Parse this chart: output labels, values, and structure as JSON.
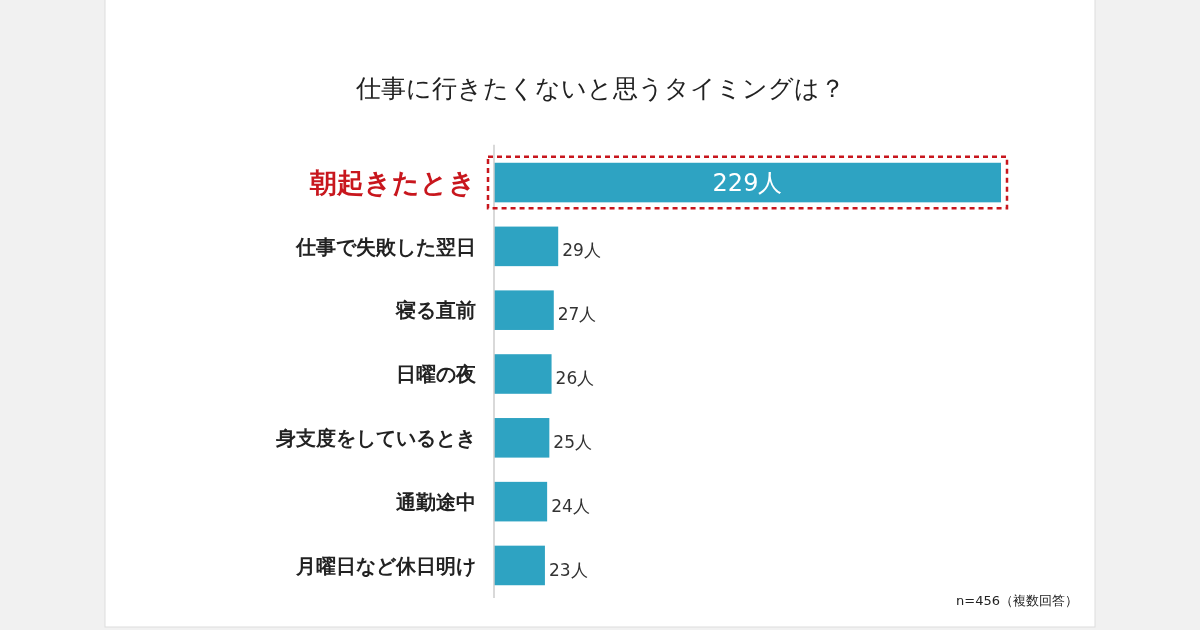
{
  "chart_data": {
    "type": "bar",
    "orientation": "horizontal",
    "title": "仕事に行きたくないと思うタイミングは？",
    "categories": [
      "朝起きたとき",
      "仕事で失敗した翌日",
      "寝る直前",
      "日曜の夜",
      "身支度をしているとき",
      "通勤途中",
      "月曜日など休日明け"
    ],
    "values": [
      229,
      29,
      27,
      26,
      25,
      24,
      23
    ],
    "value_labels": [
      "229人",
      "29人",
      "27人",
      "26人",
      "25人",
      "24人",
      "23人"
    ],
    "color": "#2ea3c2",
    "annotations": [
      "n=456（複数回答）"
    ]
  }
}
